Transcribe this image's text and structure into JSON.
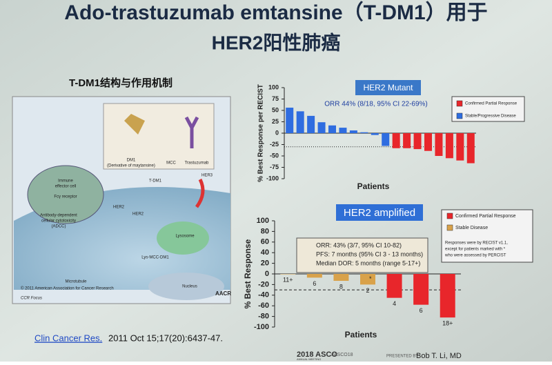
{
  "slide": {
    "title_line1": "Ado-trastuzumab emtansine（T-DM1）用于",
    "title_line2": "HER2阳性肺癌",
    "left_heading": "T-DM1结构与作用机制",
    "figure": {
      "labels": [
        "DM1",
        "(Derivative of maytansine)",
        "MCC",
        "Trastuzumab",
        "Immune",
        "effector cell",
        "Fcγ receptor",
        "Antibody-dependent",
        "cellular cytotoxicity",
        "(ADCC)",
        "HER2",
        "T-DM1",
        "HER2",
        "HER3",
        "Lysosome",
        "Lys-MCC-DM1",
        "Microtubule",
        "Nucleus"
      ],
      "copyright": "© 2011 American Association for Cancer Research",
      "source": "CCR Focus",
      "logo": "AACR"
    },
    "citation_link": "Clin Cancer Res.",
    "citation_rest": "2011 Oct 15;17(20):6437-47.",
    "footer": {
      "meeting": "2018 ASCO",
      "meeting_sub": "ANNUAL MEETING",
      "tag": "#ASCO18",
      "presenter_label": "PRESENTED BY:",
      "presenter": "Bob T. Li, MD"
    }
  },
  "chart_data": [
    {
      "type": "bar",
      "title": "HER2 Mutant",
      "subtitle": "ORR 44% (8/18, 95% CI 22-69%)",
      "y_label": "% Best Response per RECIST",
      "x_label": "Patients",
      "categories": [
        null,
        null,
        null,
        null,
        null,
        null,
        null,
        null,
        null,
        null,
        null,
        null,
        null,
        null,
        null,
        null,
        null,
        null
      ],
      "series": [
        {
          "name": "Confirmed Partial Response",
          "color": "#e8262b",
          "values": [
            null,
            null,
            null,
            null,
            null,
            null,
            null,
            null,
            null,
            null,
            -33,
            -33,
            -35,
            -39,
            -50,
            -55,
            -60,
            -66
          ]
        },
        {
          "name": "Stable/Progressive Disease",
          "color": "#2f6de0",
          "values": [
            56,
            48,
            38,
            24,
            17,
            12,
            6,
            2,
            -4,
            -28,
            null,
            null,
            null,
            null,
            null,
            null,
            null,
            null
          ]
        }
      ],
      "reference_line": -30,
      "ylim": [
        -100,
        100
      ],
      "yticks": [
        100,
        75,
        50,
        25,
        0,
        -25,
        -50,
        -75,
        -100
      ]
    },
    {
      "type": "bar",
      "title": "HER2 amplified",
      "y_label": "% Best Response",
      "x_label": "Patients",
      "textbox": [
        "ORR: 43% (3/7, 95% CI 10-82)",
        "PFS: 7 months (95% CI 3 - 13 months)",
        "Median DOR: 5 months (range 5-17+)"
      ],
      "note": [
        "Responses were by RECIST v1.1,",
        "except for patients marked with *",
        "who were assessed by PERCIST"
      ],
      "categories": [
        null,
        null,
        null,
        null,
        null,
        null,
        null
      ],
      "series": [
        {
          "name": "Confirmed Partial Response",
          "color": "#e8262b",
          "values": [
            null,
            null,
            null,
            null,
            -45,
            -58,
            -82
          ]
        },
        {
          "name": "Stable Disease",
          "color": "#d9a24a",
          "values": [
            0,
            -7,
            -13,
            -20,
            null,
            null,
            null
          ]
        }
      ],
      "bar_labels": [
        "11+",
        "6",
        "8",
        "2",
        "4",
        "6",
        "18+"
      ],
      "marked": "*",
      "reference_line": -30,
      "ylim": [
        -100,
        100
      ],
      "yticks": [
        100,
        80,
        60,
        40,
        20,
        0,
        -20,
        -40,
        -60,
        -80,
        -100
      ]
    }
  ]
}
